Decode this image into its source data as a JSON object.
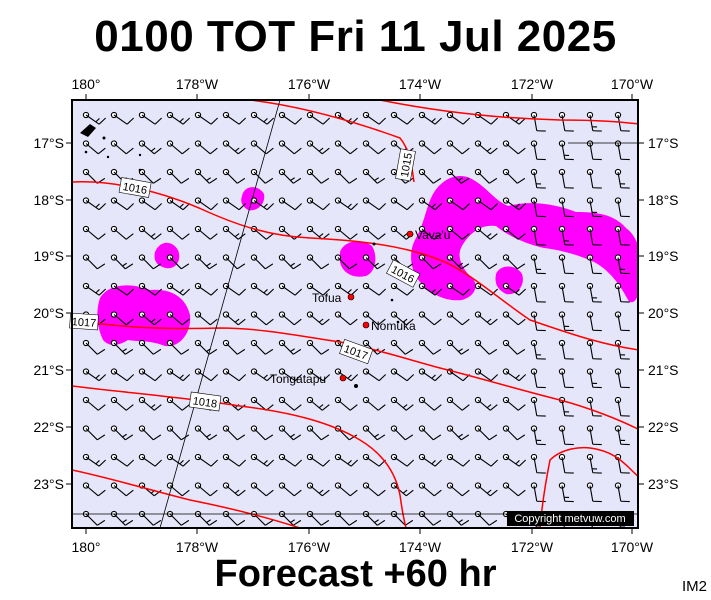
{
  "title": "0100 TOT Fri 11 Jul 2025",
  "footer": "Forecast +60 hr",
  "code": "IM2",
  "copyright": "Copyright metvuw.com",
  "colors": {
    "ocean": "#e6e6fb",
    "precip": "#ff00ff",
    "isobar": "#ff0000",
    "land": "#000000",
    "frame": "#000000"
  },
  "axes": {
    "lon_labels": [
      "180°",
      "178°W",
      "176°W",
      "174°W",
      "172°W",
      "170°W"
    ],
    "lat_labels": [
      "17°S",
      "18°S",
      "19°S",
      "20°S",
      "21°S",
      "22°S",
      "23°S"
    ]
  },
  "isobars": [
    "1015",
    "1016",
    "1016",
    "1017",
    "1017",
    "1018"
  ],
  "places": [
    "Vava'u",
    "Tofua",
    "Nomuka",
    "Tongatapu"
  ]
}
